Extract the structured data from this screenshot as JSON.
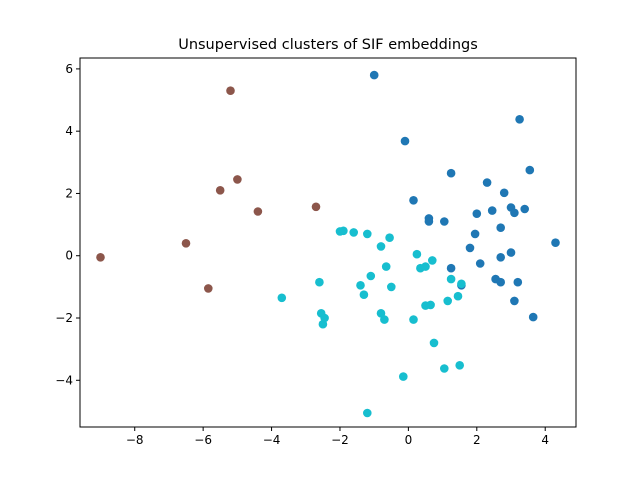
{
  "chart_data": {
    "type": "scatter",
    "title": "Unsupervised clusters of SIF embeddings",
    "xlabel": "",
    "ylabel": "",
    "xlim": [
      -9.6,
      4.9
    ],
    "ylim": [
      -5.5,
      6.35
    ],
    "xticks": [
      -8,
      -6,
      -4,
      -2,
      0,
      2,
      4
    ],
    "yticks": [
      -4,
      -2,
      0,
      2,
      4,
      6
    ],
    "grid": false,
    "legend": "none",
    "series": [
      {
        "color": "#8c564b",
        "points": [
          [
            -9.0,
            -0.05
          ],
          [
            -6.5,
            0.4
          ],
          [
            -5.85,
            -1.05
          ],
          [
            -5.5,
            2.1
          ],
          [
            -5.2,
            5.3
          ],
          [
            -5.0,
            2.45
          ],
          [
            -4.4,
            1.42
          ],
          [
            -2.7,
            1.57
          ]
        ]
      },
      {
        "color": "#1f77b4",
        "points": [
          [
            -1.0,
            5.8
          ],
          [
            -0.1,
            3.68
          ],
          [
            0.15,
            1.78
          ],
          [
            0.6,
            1.2
          ],
          [
            0.6,
            1.1
          ],
          [
            1.05,
            1.1
          ],
          [
            1.25,
            2.65
          ],
          [
            1.25,
            -0.4
          ],
          [
            1.55,
            -0.95
          ],
          [
            1.8,
            0.25
          ],
          [
            1.95,
            0.7
          ],
          [
            2.0,
            1.35
          ],
          [
            2.1,
            -0.25
          ],
          [
            2.3,
            2.35
          ],
          [
            2.45,
            1.45
          ],
          [
            2.55,
            -0.75
          ],
          [
            2.7,
            -0.85
          ],
          [
            2.7,
            0.9
          ],
          [
            2.7,
            -0.05
          ],
          [
            2.8,
            2.02
          ],
          [
            3.0,
            1.55
          ],
          [
            3.0,
            0.1
          ],
          [
            3.1,
            1.38
          ],
          [
            3.1,
            -1.45
          ],
          [
            3.2,
            -0.85
          ],
          [
            3.25,
            4.38
          ],
          [
            3.4,
            1.5
          ],
          [
            3.55,
            2.75
          ],
          [
            3.65,
            -1.97
          ],
          [
            4.3,
            0.42
          ]
        ]
      },
      {
        "color": "#17becf",
        "points": [
          [
            -3.7,
            -1.35
          ],
          [
            -2.6,
            -0.85
          ],
          [
            -2.55,
            -1.85
          ],
          [
            -2.5,
            -2.2
          ],
          [
            -2.45,
            -2.0
          ],
          [
            -2.0,
            0.78
          ],
          [
            -1.9,
            0.8
          ],
          [
            -1.6,
            0.75
          ],
          [
            -1.4,
            -0.95
          ],
          [
            -1.3,
            -1.25
          ],
          [
            -1.2,
            0.7
          ],
          [
            -1.2,
            -5.05
          ],
          [
            -1.1,
            -0.65
          ],
          [
            -0.8,
            0.3
          ],
          [
            -0.8,
            -1.85
          ],
          [
            -0.7,
            -2.05
          ],
          [
            -0.65,
            -0.35
          ],
          [
            -0.55,
            0.58
          ],
          [
            -0.5,
            -1.0
          ],
          [
            -0.15,
            -3.88
          ],
          [
            0.15,
            -2.05
          ],
          [
            0.25,
            0.05
          ],
          [
            0.35,
            -0.4
          ],
          [
            0.5,
            -0.35
          ],
          [
            0.5,
            -1.6
          ],
          [
            0.65,
            -1.58
          ],
          [
            0.7,
            -0.15
          ],
          [
            0.75,
            -2.8
          ],
          [
            1.05,
            -3.62
          ],
          [
            1.15,
            -1.45
          ],
          [
            1.25,
            -0.75
          ],
          [
            1.45,
            -1.3
          ],
          [
            1.5,
            -3.52
          ],
          [
            1.55,
            -0.9
          ]
        ]
      }
    ]
  }
}
